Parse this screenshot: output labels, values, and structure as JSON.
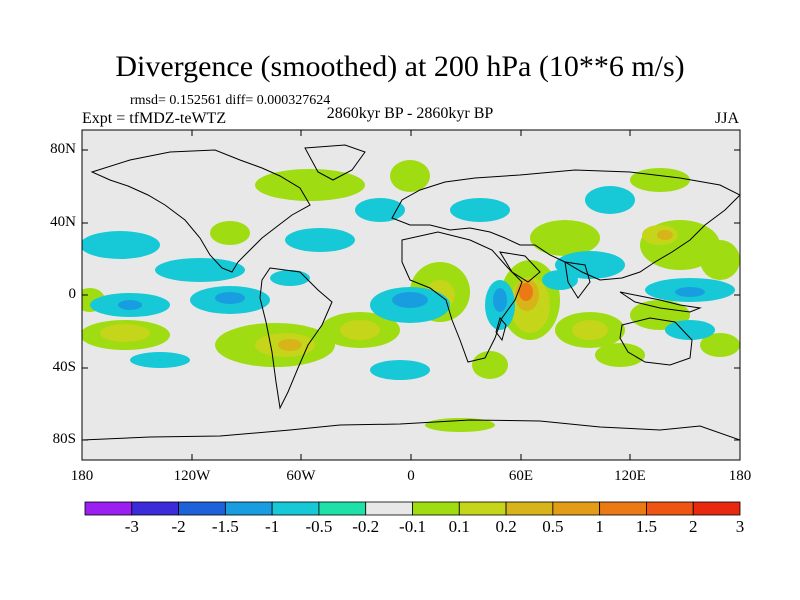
{
  "title": "Divergence (smoothed) at 200 hPa (10**6 m/s)",
  "stats": "rmsd= 0.152561 diff= 0.000327624",
  "experiment": "Expt = tfMDZ-teWTZ",
  "period": "2860kyr BP - 2860kyr BP",
  "season": "JJA",
  "map": {
    "background_color": "#e8e8e8",
    "lat_labels": [
      "80N",
      "40N",
      "0",
      "40S",
      "80S"
    ],
    "lon_labels": [
      "180",
      "120W",
      "60W",
      "0",
      "60E",
      "120E",
      "180"
    ]
  },
  "colorbar": {
    "colors": [
      "#9a1ff0",
      "#3b2bd8",
      "#1d62d8",
      "#189ee0",
      "#17c9d6",
      "#1fe0a8",
      "#e8e8e8",
      "#9fdc12",
      "#c4d51a",
      "#d8b41b",
      "#e39c16",
      "#eb7a14",
      "#ee5412",
      "#e8280f"
    ],
    "labels": [
      "-3",
      "-2",
      "-1.5",
      "-1",
      "-0.5",
      "-0.2",
      "-0.1",
      "0.1",
      "0.2",
      "0.5",
      "1",
      "1.5",
      "2",
      "3"
    ]
  }
}
